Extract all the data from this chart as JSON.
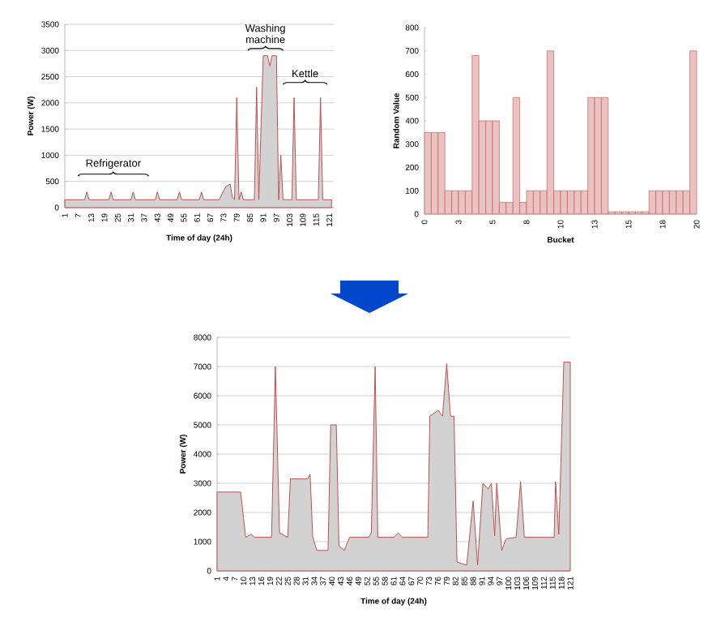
{
  "chart_data": [
    {
      "type": "area",
      "xlabel": "Time of day (24h)",
      "ylabel": "Power (W)",
      "color": "#c0504d",
      "grid": "y",
      "xlim": [
        1,
        123
      ],
      "ylim": [
        0,
        3500
      ],
      "yticks": [
        0,
        500,
        1000,
        1500,
        2000,
        2500,
        3000,
        3500
      ],
      "xticks": [
        1,
        7,
        13,
        19,
        25,
        31,
        37,
        43,
        49,
        55,
        61,
        67,
        73,
        79,
        85,
        91,
        97,
        103,
        109,
        115,
        121
      ],
      "x": [
        1,
        10,
        11,
        12,
        21,
        22,
        23,
        31,
        32,
        33,
        42,
        43,
        44,
        52,
        53,
        54,
        62,
        63,
        64,
        71,
        74,
        76,
        77,
        78,
        79,
        80,
        81,
        82,
        87,
        88,
        89,
        91,
        93,
        94,
        95,
        97,
        98,
        99,
        100,
        104,
        105,
        106,
        116,
        117,
        118,
        122
      ],
      "values": [
        150,
        150,
        300,
        150,
        150,
        300,
        150,
        150,
        300,
        150,
        150,
        300,
        150,
        150,
        300,
        150,
        150,
        300,
        150,
        150,
        400,
        450,
        200,
        150,
        2100,
        150,
        300,
        150,
        150,
        2300,
        150,
        2900,
        2900,
        2700,
        2900,
        2900,
        150,
        1000,
        150,
        150,
        2100,
        150,
        150,
        2100,
        150,
        150
      ],
      "annotations": [
        "Refrigerator",
        "Washing machine",
        "Kettle"
      ]
    },
    {
      "type": "bar",
      "xlabel": "Bucket",
      "ylabel": "Random Value",
      "color": "#c0504d",
      "xlim": [
        0,
        20
      ],
      "ylim": [
        0,
        800
      ],
      "yticks": [
        0,
        100,
        200,
        300,
        400,
        500,
        600,
        700,
        800
      ],
      "xticks": [
        0,
        {
          "value": 2.5,
          "label": "3"
        },
        5,
        {
          "value": 7.5,
          "label": "8"
        },
        10,
        {
          "value": 12.5,
          "label": "13"
        },
        15,
        {
          "value": 17.5,
          "label": "18"
        },
        20
      ],
      "x": [
        0.25,
        0.75,
        1.25,
        1.75,
        2.25,
        2.75,
        3.25,
        3.75,
        4.25,
        4.75,
        5.25,
        5.75,
        6.25,
        6.75,
        7.25,
        7.75,
        8.25,
        8.75,
        9.25,
        9.75,
        10.25,
        10.75,
        11.25,
        11.75,
        12.25,
        12.75,
        13.25,
        13.75,
        14.25,
        14.75,
        15.25,
        15.75,
        16.25,
        16.75,
        17.25,
        17.75,
        18.25,
        18.75,
        19.25,
        19.75
      ],
      "values": [
        350,
        350,
        350,
        100,
        100,
        100,
        100,
        680,
        400,
        400,
        400,
        50,
        50,
        500,
        50,
        100,
        100,
        100,
        700,
        100,
        100,
        100,
        100,
        100,
        500,
        500,
        500,
        10,
        10,
        10,
        10,
        10,
        10,
        100,
        100,
        100,
        100,
        100,
        100,
        700
      ]
    },
    {
      "type": "area",
      "xlabel": "Time of day (24h)",
      "ylabel": "Power (W)",
      "color": "#c0504d",
      "grid": "y",
      "xlim": [
        1,
        121
      ],
      "ylim": [
        0,
        8000
      ],
      "yticks": [
        0,
        1000,
        2000,
        3000,
        4000,
        5000,
        6000,
        7000,
        8000
      ],
      "xticks": [
        1,
        4,
        7,
        10,
        13,
        16,
        19,
        22,
        25,
        28,
        31,
        34,
        37,
        40,
        43,
        46,
        49,
        52,
        55,
        58,
        61,
        64,
        67,
        70,
        73,
        76,
        79,
        82,
        85,
        88,
        91,
        94,
        97,
        100,
        103,
        106,
        109,
        112,
        115,
        118,
        121
      ],
      "x": [
        1,
        9,
        10.7,
        12.5,
        13.8,
        19.5,
        20.8,
        22.2,
        25,
        25.9,
        31.7,
        32.6,
        33.5,
        34.9,
        38.7,
        39.6,
        41.5,
        42.4,
        44.2,
        46,
        52.5,
        53.4,
        54.7,
        55.6,
        61.1,
        62.5,
        64,
        72.6,
        73.3,
        76.1,
        77.6,
        79,
        80.3,
        81.5,
        82.5,
        85.8,
        88,
        89.5,
        91.3,
        93.1,
        94.2,
        95.3,
        96,
        97.7,
        99.2,
        102.6,
        104.1,
        105.4,
        115.5,
        116,
        117.1,
        118.8,
        121
      ],
      "values": [
        2700,
        2700,
        1150,
        1250,
        1150,
        1150,
        7000,
        1300,
        1150,
        3150,
        3150,
        3300,
        1150,
        700,
        700,
        5000,
        5000,
        850,
        700,
        1150,
        1150,
        1300,
        7000,
        1150,
        1150,
        1300,
        1150,
        1150,
        5300,
        5500,
        5300,
        7100,
        5300,
        5300,
        300,
        200,
        2400,
        200,
        3000,
        2800,
        3000,
        1200,
        3000,
        700,
        1100,
        1150,
        3050,
        1150,
        1150,
        3050,
        1250,
        7150,
        7150
      ]
    }
  ]
}
